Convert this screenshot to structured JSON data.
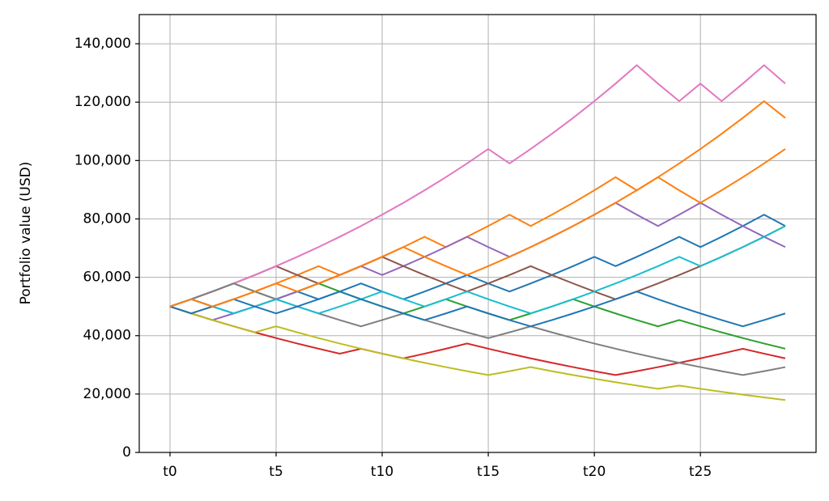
{
  "chart_data": {
    "type": "line",
    "y_label": "Portfolio value (USD)",
    "categories": [
      "t0",
      null,
      null,
      null,
      null,
      "t5",
      null,
      null,
      null,
      null,
      "t10",
      null,
      null,
      null,
      null,
      "t15",
      null,
      null,
      null,
      null,
      "t20",
      null,
      null,
      null,
      null,
      "t25",
      null,
      null,
      null,
      null
    ],
    "xlim": [
      -1.45,
      30.45
    ],
    "ylim": [
      0,
      150000
    ],
    "yticks": [
      0,
      {
        "value": 20000,
        "label": "20,000"
      },
      {
        "value": 40000,
        "label": "40,000"
      },
      {
        "value": 60000,
        "label": "60,000"
      },
      {
        "value": 80000,
        "label": "80,000"
      },
      {
        "value": 100000,
        "label": "100,000"
      },
      {
        "value": 120000,
        "label": "120,000"
      },
      {
        "value": 140000,
        "label": "140,000"
      }
    ],
    "grid": true,
    "series": [
      {
        "color": "#1f77b4",
        "values": [
          50000,
          52500,
          50000,
          47619,
          50000,
          52500,
          55125,
          52500,
          55125,
          57881,
          55125,
          52500,
          55125,
          57881,
          60775,
          57881,
          55125,
          57881,
          60775,
          63814,
          67005,
          63814,
          67005,
          70355,
          73873,
          70355,
          73873,
          77566,
          81445,
          77566
        ]
      },
      {
        "color": "#ff7f0e",
        "values": [
          50000,
          47619,
          50000,
          52500,
          55125,
          57881,
          60775,
          63814,
          60775,
          63814,
          67005,
          70355,
          73873,
          70355,
          73873,
          77566,
          81445,
          77566,
          81445,
          85517,
          89793,
          94282,
          89793,
          94282,
          98997,
          103946,
          109144,
          114601,
          120331,
          114601
        ]
      },
      {
        "color": "#2ca02c",
        "values": [
          50000,
          52500,
          55125,
          57881,
          55125,
          52500,
          55125,
          57881,
          55125,
          52500,
          50000,
          47619,
          50000,
          52500,
          50000,
          47619,
          45351,
          47619,
          50000,
          52500,
          50000,
          47619,
          45351,
          43192,
          45351,
          43192,
          41135,
          39176,
          37311,
          35534
        ]
      },
      {
        "color": "#d62728",
        "values": [
          50000,
          47619,
          45351,
          43192,
          41135,
          39176,
          37311,
          35534,
          33842,
          35534,
          33842,
          32231,
          33842,
          35534,
          37311,
          35534,
          33842,
          32231,
          30696,
          29234,
          27842,
          26516,
          27842,
          29234,
          30696,
          32231,
          33842,
          35534,
          33842,
          32231
        ]
      },
      {
        "color": "#9467bd",
        "values": [
          50000,
          47619,
          45351,
          47619,
          50000,
          52500,
          55125,
          57881,
          60775,
          63814,
          60775,
          63814,
          67005,
          70355,
          73873,
          70355,
          67005,
          70355,
          73873,
          77566,
          81445,
          85517,
          81445,
          77566,
          81445,
          85517,
          81445,
          77566,
          73873,
          70355
        ]
      },
      {
        "color": "#8c564b",
        "values": [
          50000,
          52500,
          55125,
          57881,
          60775,
          63814,
          60775,
          57881,
          60775,
          63814,
          67005,
          63814,
          60775,
          57881,
          55125,
          57881,
          60775,
          63814,
          60775,
          57881,
          55125,
          52500,
          55125,
          57881,
          60775,
          63814,
          67005,
          70355,
          73873,
          77566
        ]
      },
      {
        "color": "#e377c2",
        "values": [
          50000,
          52500,
          55125,
          57881,
          60775,
          63814,
          67005,
          70355,
          73873,
          77566,
          81445,
          85517,
          89793,
          94282,
          98997,
          103946,
          98997,
          103946,
          109144,
          114601,
          120331,
          126348,
          132665,
          126348,
          120331,
          126348,
          120331,
          126348,
          132665,
          126348
        ]
      },
      {
        "color": "#7f7f7f",
        "values": [
          50000,
          52500,
          55125,
          57881,
          55125,
          52500,
          50000,
          47619,
          45351,
          43192,
          45351,
          47619,
          45351,
          43192,
          41135,
          39176,
          41135,
          43192,
          41135,
          39176,
          37311,
          35534,
          33842,
          32231,
          30696,
          29234,
          27842,
          26516,
          27842,
          29234
        ]
      },
      {
        "color": "#bcbd22",
        "values": [
          50000,
          47619,
          45351,
          43192,
          41135,
          43192,
          41135,
          39176,
          37311,
          35534,
          33842,
          32231,
          30696,
          29234,
          27842,
          26516,
          27842,
          29234,
          27842,
          26516,
          25253,
          24051,
          22906,
          21815,
          22906,
          21815,
          20776,
          19787,
          18845,
          17948
        ]
      },
      {
        "color": "#17becf",
        "values": [
          50000,
          52500,
          50000,
          47619,
          50000,
          52500,
          50000,
          47619,
          50000,
          52500,
          55125,
          52500,
          50000,
          52500,
          55125,
          52500,
          50000,
          47619,
          50000,
          52500,
          55125,
          57881,
          60775,
          63814,
          67005,
          63814,
          67005,
          70355,
          73873,
          77566
        ]
      },
      {
        "color": "#1f77b4",
        "values": [
          50000,
          47619,
          50000,
          52500,
          50000,
          47619,
          50000,
          52500,
          55125,
          52500,
          50000,
          47619,
          45351,
          47619,
          50000,
          47619,
          45351,
          43192,
          45351,
          47619,
          50000,
          52500,
          55125,
          52500,
          50000,
          47619,
          45351,
          43192,
          45351,
          47619
        ]
      },
      {
        "color": "#ff7f0e",
        "values": [
          50000,
          52500,
          50000,
          52500,
          55125,
          57881,
          55125,
          57881,
          60775,
          63814,
          67005,
          70355,
          67005,
          63814,
          60775,
          63814,
          67005,
          70355,
          73873,
          77566,
          81445,
          85517,
          89793,
          94282,
          89793,
          85517,
          89793,
          94282,
          98997,
          103946
        ]
      }
    ]
  }
}
